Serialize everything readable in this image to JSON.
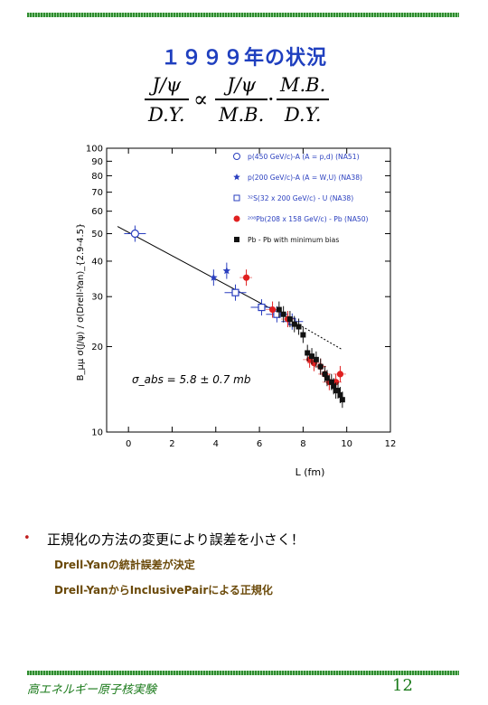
{
  "slide": {
    "title": "１９９９年の状況",
    "formula": {
      "lhs_num": "J/ψ",
      "lhs_den": "D.Y.",
      "proportional": "∝",
      "f1_num": "J/ψ",
      "f1_den": "M.B.",
      "dot": "·",
      "f2_num": "M.B.",
      "f2_den": "D.Y."
    },
    "bullet": "正規化の方法の変更により誤差を小さく！",
    "sub_items": [
      "Drell-Yanの統計誤差が決定",
      "Drell-YanからInclusivePairによる正規化"
    ],
    "footer_left": "高エネルギー原子核実験",
    "page_number": "12"
  },
  "colors": {
    "title": "#1f3fbf",
    "footer": "#1a7a1a",
    "accent_red": "#e02020",
    "legend_text": "#2a3fbf"
  },
  "chart_data": {
    "type": "scatter",
    "xlabel": "L (fm)",
    "ylabel": "B_μμ σ(J/ψ) / σ(Drell-Yan)_{2.9-4.5}",
    "xlim": [
      -1,
      12
    ],
    "ylim": [
      10,
      100
    ],
    "log_y": true,
    "x_ticks": [
      0,
      2,
      4,
      6,
      8,
      10,
      12
    ],
    "y_ticks": [
      10,
      20,
      30,
      40,
      50,
      60,
      70,
      80,
      90,
      100
    ],
    "annotation": "σ_abs = 5.8 ± 0.7 mb",
    "legend_position": "top-right",
    "fit_line": {
      "x": [
        -0.5,
        9.8
      ],
      "y": [
        53,
        19.5
      ]
    },
    "series": [
      {
        "name": "p(450 GeV/c)-A (A = p,d) (NA51)",
        "marker": "open-circle",
        "color": "#2a3fbf",
        "x": [
          0.3
        ],
        "y": [
          50
        ]
      },
      {
        "name": "p(200 GeV/c)-A (A = W,U) (NA38)",
        "marker": "star",
        "color": "#2a3fbf",
        "x": [
          3.9,
          4.5
        ],
        "y": [
          35,
          37
        ]
      },
      {
        "name": "³²S(32 x 200 GeV/c) - U (NA38)",
        "marker": "open-square",
        "color": "#2a3fbf",
        "x": [
          4.9,
          6.1,
          6.8,
          7.5
        ],
        "y": [
          31,
          27.5,
          26,
          24.5
        ]
      },
      {
        "name": "²⁰⁸Pb(208 x 158 GeV/c) - Pb (NA50)",
        "marker": "filled-circle",
        "color": "#e02020",
        "x": [
          5.4,
          6.6,
          7.3,
          8.3,
          8.5,
          8.8,
          9.0,
          9.2,
          9.5,
          9.7
        ],
        "y": [
          35,
          27,
          25,
          18,
          17.5,
          17,
          16,
          15,
          15,
          16
        ]
      },
      {
        "name": "Pb - Pb with minimum bias",
        "marker": "filled-square",
        "color": "#111111",
        "x": [
          6.9,
          7.1,
          7.4,
          7.6,
          7.8,
          8.0,
          8.2,
          8.4,
          8.6,
          8.8,
          9.0,
          9.1,
          9.3,
          9.4,
          9.5,
          9.6,
          9.7,
          9.8
        ],
        "y": [
          27,
          26,
          25,
          24,
          23.5,
          22,
          19,
          18.5,
          18,
          17,
          16,
          15.5,
          15,
          14.5,
          14,
          14,
          13.5,
          13
        ]
      }
    ]
  }
}
